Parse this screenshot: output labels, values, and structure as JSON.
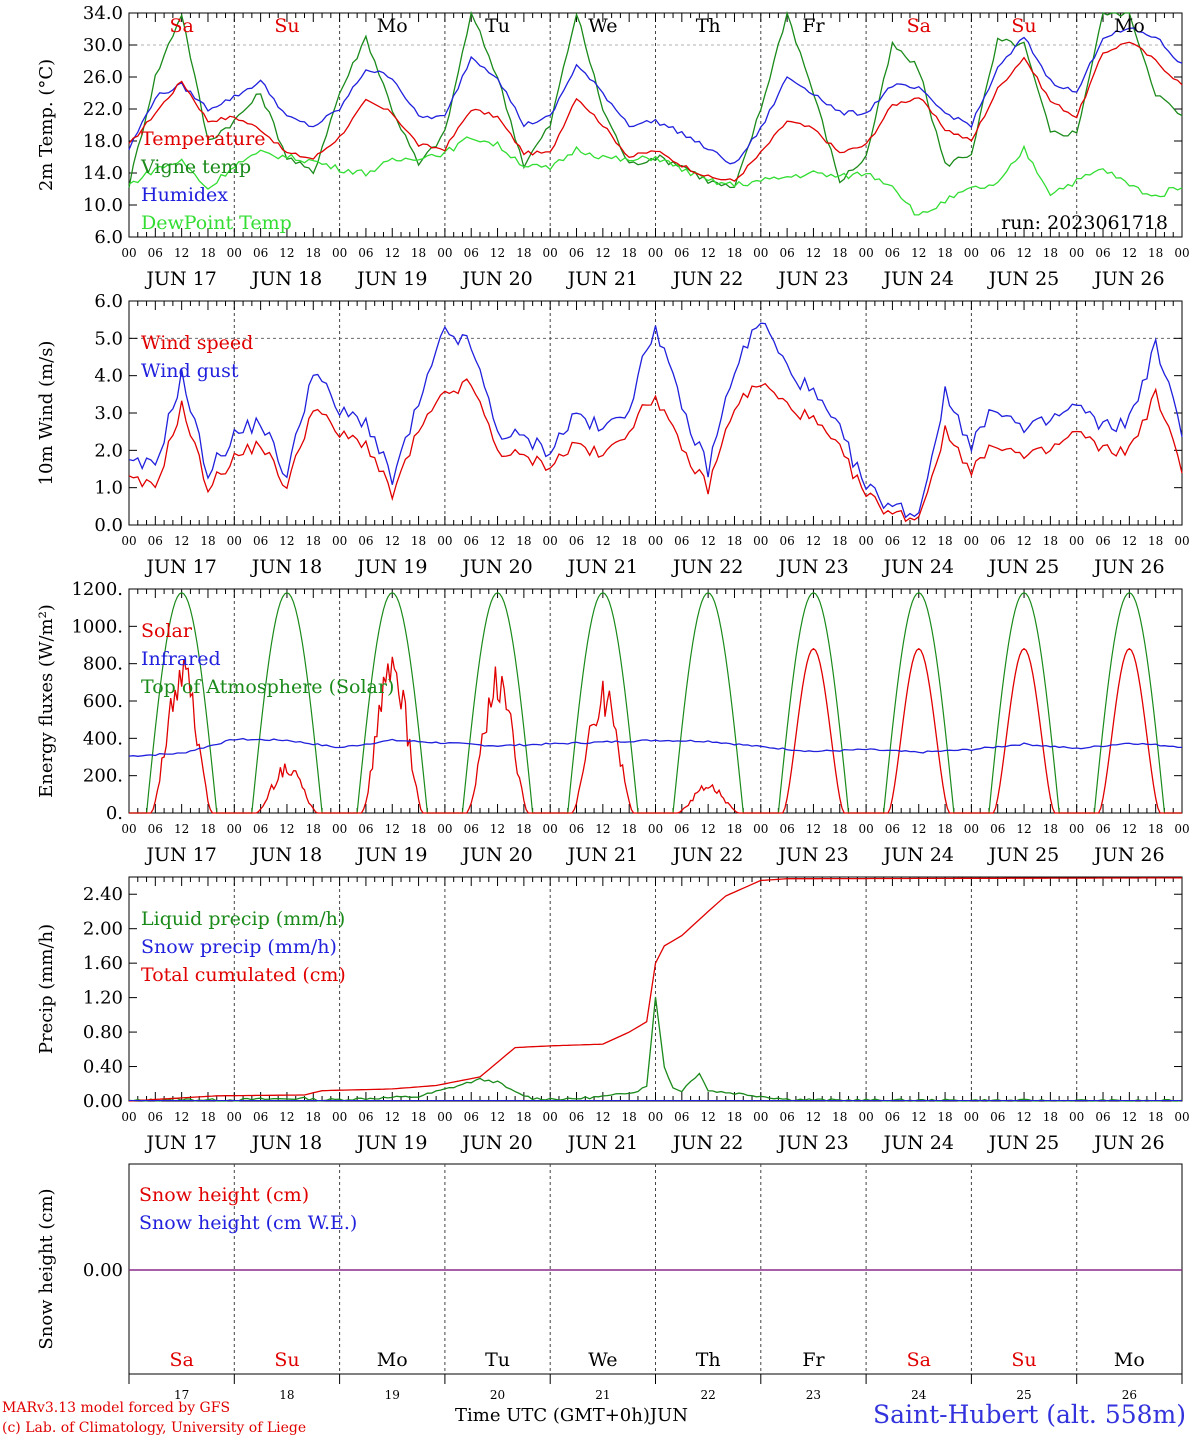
{
  "run_label": "run: 2023061718",
  "credits": {
    "line1": "MARv3.13 model forced by GFS",
    "line2": "(c) Lab. of Climatology, University of Liege"
  },
  "station": "Saint-Hubert (alt. 558m)",
  "time_axis_label": "Time UTC (GMT+0h)",
  "month_label": "JUN",
  "days": [
    {
      "dow": "Sa",
      "date": "JUN 17",
      "num": "17",
      "weekend": true
    },
    {
      "dow": "Su",
      "date": "JUN 18",
      "num": "18",
      "weekend": true
    },
    {
      "dow": "Mo",
      "date": "JUN 19",
      "num": "19",
      "weekend": false
    },
    {
      "dow": "Tu",
      "date": "JUN 20",
      "num": "20",
      "weekend": false
    },
    {
      "dow": "We",
      "date": "JUN 21",
      "num": "21",
      "weekend": false
    },
    {
      "dow": "Th",
      "date": "JUN 22",
      "num": "22",
      "weekend": false
    },
    {
      "dow": "Fr",
      "date": "JUN 23",
      "num": "23",
      "weekend": false
    },
    {
      "dow": "Sa",
      "date": "JUN 24",
      "num": "24",
      "weekend": true
    },
    {
      "dow": "Su",
      "date": "JUN 25",
      "num": "25",
      "weekend": true
    },
    {
      "dow": "Mo",
      "date": "JUN 26",
      "num": "26",
      "weekend": false
    }
  ],
  "hour_labels": [
    "00",
    "06",
    "12",
    "18"
  ],
  "end_hour_label": "00",
  "colors": {
    "temperature": "#e00000",
    "vigne": "#1a8a1a",
    "humidex": "#2020dd",
    "dewpoint": "#33dd33",
    "weekend_text": "#e00000",
    "weekday_text": "#000000",
    "snow_zero": "#8a2a8a"
  },
  "chart_data": [
    {
      "type": "line",
      "ylabel": "2m Temp. (°C)",
      "ylim": [
        6.0,
        34.0
      ],
      "yticks": [
        "6.0",
        "10.0",
        "14.0",
        "18.0",
        "22.0",
        "26.0",
        "30.0",
        "34.0"
      ],
      "ytick_values": [
        6,
        10,
        14,
        18,
        22,
        26,
        30,
        34
      ],
      "series": [
        {
          "name": "Temperature",
          "color": "#e00000",
          "x": [
            0,
            6,
            12,
            18,
            24,
            30,
            36,
            42,
            48,
            54,
            60,
            66,
            72,
            78,
            84,
            90,
            96,
            102,
            108,
            114,
            120,
            126,
            132,
            138,
            144,
            150,
            156,
            162,
            168,
            174,
            180,
            186,
            192,
            198,
            204,
            210,
            216,
            222,
            228,
            234,
            240
          ],
          "y": [
            17.5,
            21.5,
            25.5,
            20.5,
            21.0,
            19.5,
            16.5,
            15.8,
            18.5,
            23.0,
            21.5,
            17.5,
            17.0,
            22.0,
            21.0,
            16.5,
            16.5,
            23.5,
            20.0,
            16.0,
            16.8,
            15.0,
            13.5,
            13.0,
            16.5,
            20.5,
            19.5,
            16.5,
            17.5,
            22.5,
            23.5,
            19.5,
            18.0,
            24.5,
            28.5,
            23.0,
            21.0,
            29.0,
            30.5,
            28.0,
            25.0
          ]
        },
        {
          "name": "Vigne temp",
          "color": "#1a8a1a",
          "x": [
            0,
            6,
            12,
            18,
            24,
            30,
            36,
            42,
            48,
            54,
            60,
            66,
            72,
            78,
            84,
            90,
            96,
            102,
            108,
            114,
            120,
            126,
            132,
            138,
            144,
            150,
            156,
            162,
            168,
            174,
            180,
            186,
            192,
            198,
            204,
            210,
            216,
            222,
            228,
            234,
            240
          ],
          "y": [
            12.5,
            26.0,
            34.0,
            18.0,
            20.5,
            24.0,
            16.0,
            14.0,
            24.0,
            31.0,
            22.0,
            15.0,
            19.0,
            34.0,
            26.0,
            15.0,
            20.0,
            34.0,
            22.0,
            15.0,
            16.0,
            15.0,
            13.0,
            12.0,
            22.0,
            34.0,
            24.0,
            13.0,
            16.0,
            30.0,
            27.0,
            15.0,
            16.5,
            30.5,
            30.0,
            19.0,
            19.0,
            34.0,
            34.0,
            24.0,
            21.0
          ]
        },
        {
          "name": "Humidex",
          "color": "#2020dd",
          "x": [
            0,
            6,
            12,
            18,
            24,
            30,
            36,
            42,
            48,
            54,
            60,
            66,
            72,
            78,
            84,
            90,
            96,
            102,
            108,
            114,
            120,
            126,
            132,
            138,
            144,
            150,
            156,
            162,
            168,
            174,
            180,
            186,
            192,
            198,
            204,
            210,
            216,
            222,
            228,
            234,
            240
          ],
          "y": [
            17.0,
            23.5,
            25.0,
            22.0,
            23.5,
            25.5,
            21.0,
            19.8,
            22.0,
            27.0,
            26.0,
            21.0,
            21.0,
            28.5,
            26.0,
            20.0,
            21.0,
            27.5,
            24.0,
            20.0,
            20.5,
            19.0,
            17.0,
            15.0,
            19.5,
            26.0,
            24.0,
            21.5,
            21.5,
            25.0,
            24.5,
            21.5,
            20.0,
            27.0,
            31.0,
            25.5,
            24.0,
            31.0,
            32.0,
            31.0,
            27.5
          ]
        },
        {
          "name": "DewPoint Temp",
          "color": "#33dd33",
          "x": [
            0,
            6,
            12,
            18,
            24,
            30,
            36,
            42,
            48,
            54,
            60,
            66,
            72,
            78,
            84,
            90,
            96,
            102,
            108,
            114,
            120,
            126,
            132,
            138,
            144,
            150,
            156,
            162,
            168,
            174,
            180,
            186,
            192,
            198,
            204,
            210,
            216,
            222,
            228,
            234,
            240
          ],
          "y": [
            12.5,
            14.5,
            15.5,
            12.0,
            15.0,
            16.5,
            16.0,
            15.5,
            14.5,
            14.0,
            15.5,
            16.0,
            16.5,
            18.5,
            17.5,
            15.0,
            14.5,
            17.0,
            16.0,
            15.5,
            16.0,
            14.5,
            13.0,
            12.5,
            13.0,
            13.5,
            14.0,
            13.5,
            14.0,
            12.5,
            8.5,
            10.5,
            12.0,
            12.5,
            17.0,
            11.5,
            13.0,
            14.5,
            12.5,
            11.0,
            12.5
          ]
        }
      ]
    },
    {
      "type": "line",
      "ylabel": "10m Wind (m/s)",
      "ylim": [
        0.0,
        6.0
      ],
      "yticks": [
        "0.0",
        "1.0",
        "2.0",
        "3.0",
        "4.0",
        "5.0",
        "6.0"
      ],
      "ytick_values": [
        0,
        1,
        2,
        3,
        4,
        5,
        6
      ],
      "series": [
        {
          "name": "Wind speed",
          "color": "#e00000",
          "x": [
            0,
            6,
            12,
            18,
            24,
            30,
            36,
            42,
            48,
            54,
            60,
            66,
            72,
            78,
            84,
            90,
            96,
            102,
            108,
            114,
            120,
            126,
            132,
            138,
            144,
            150,
            156,
            162,
            168,
            174,
            180,
            186,
            192,
            198,
            204,
            210,
            216,
            222,
            228,
            234,
            240
          ],
          "y": [
            1.2,
            1.0,
            3.2,
            1.0,
            1.8,
            2.2,
            1.0,
            3.2,
            2.4,
            2.2,
            0.8,
            2.5,
            3.5,
            3.8,
            2.0,
            1.8,
            1.6,
            2.2,
            1.8,
            2.6,
            3.5,
            2.0,
            1.0,
            3.2,
            3.8,
            3.2,
            2.8,
            2.0,
            0.8,
            0.3,
            0.2,
            2.5,
            1.5,
            2.2,
            1.8,
            2.0,
            2.5,
            2.0,
            2.0,
            3.5,
            1.5
          ]
        },
        {
          "name": "Wind gust",
          "color": "#2020dd",
          "x": [
            0,
            6,
            12,
            18,
            24,
            30,
            36,
            42,
            48,
            54,
            60,
            66,
            72,
            78,
            84,
            90,
            96,
            102,
            108,
            114,
            120,
            126,
            132,
            138,
            144,
            150,
            156,
            162,
            168,
            174,
            180,
            186,
            192,
            198,
            204,
            210,
            216,
            222,
            228,
            234,
            240
          ],
          "y": [
            1.6,
            1.6,
            4.0,
            1.4,
            2.4,
            2.8,
            1.3,
            4.2,
            3.0,
            2.8,
            1.2,
            3.2,
            5.2,
            4.8,
            2.5,
            2.3,
            2.0,
            3.0,
            2.5,
            3.2,
            5.4,
            3.1,
            1.5,
            4.2,
            5.5,
            4.2,
            3.5,
            2.5,
            1.0,
            0.5,
            0.3,
            3.5,
            2.2,
            3.2,
            2.5,
            2.8,
            3.2,
            2.6,
            2.8,
            4.8,
            2.5
          ]
        }
      ]
    },
    {
      "type": "line",
      "ylabel": "Energy fluxes (W/m²)",
      "ylim": [
        0,
        1200
      ],
      "yticks": [
        "0.",
        "200.",
        "400.",
        "600.",
        "800.",
        "1000.",
        "1200."
      ],
      "ytick_values": [
        0,
        200,
        400,
        600,
        800,
        1000,
        1200
      ],
      "solar_peaks": [
        880,
        270,
        880,
        800,
        720,
        160,
        880,
        880,
        880,
        880
      ],
      "toa_peak": 1180,
      "series": [
        {
          "name": "Solar",
          "color": "#e00000"
        },
        {
          "name": "Infrared",
          "color": "#2020dd",
          "x": [
            0,
            12,
            24,
            36,
            48,
            60,
            72,
            84,
            96,
            108,
            120,
            132,
            144,
            156,
            168,
            180,
            192,
            204,
            216,
            228,
            240
          ],
          "y": [
            305,
            320,
            395,
            390,
            350,
            390,
            375,
            360,
            370,
            380,
            390,
            385,
            355,
            330,
            340,
            325,
            340,
            370,
            345,
            375,
            355
          ]
        },
        {
          "name": "Top of Atmosphere (Solar)",
          "color": "#1a8a1a"
        }
      ]
    },
    {
      "type": "line",
      "ylabel": "Precip (mm/h)",
      "ylim": [
        0.0,
        2.6
      ],
      "yticks": [
        "0.00",
        "0.40",
        "0.80",
        "1.20",
        "1.60",
        "2.00",
        "2.40"
      ],
      "ytick_values": [
        0,
        0.4,
        0.8,
        1.2,
        1.6,
        2.0,
        2.4
      ],
      "series": [
        {
          "name": "Liquid precip (mm/h)",
          "color": "#1a8a1a",
          "x": [
            0,
            10,
            20,
            40,
            44,
            60,
            66,
            80,
            84,
            88,
            92,
            100,
            110,
            116,
            118,
            120,
            122,
            124,
            126,
            130,
            132,
            140,
            150,
            160,
            240
          ],
          "y": [
            0,
            0.02,
            0.01,
            0.03,
            0.01,
            0.04,
            0.05,
            0.25,
            0.22,
            0.1,
            0.03,
            0.02,
            0.06,
            0.12,
            0.18,
            1.2,
            0.4,
            0.15,
            0.12,
            0.33,
            0.12,
            0.08,
            0.02,
            0.01,
            0
          ]
        },
        {
          "name": "Snow precip (mm/h)",
          "color": "#2020dd"
        },
        {
          "name": "Total cumulated (cm)",
          "color": "#e00000",
          "x": [
            0,
            10,
            20,
            40,
            44,
            60,
            70,
            80,
            88,
            96,
            108,
            114,
            118,
            120,
            122,
            126,
            132,
            136,
            144,
            150,
            240
          ],
          "y": [
            0,
            0.03,
            0.06,
            0.07,
            0.12,
            0.14,
            0.18,
            0.28,
            0.62,
            0.64,
            0.66,
            0.8,
            0.92,
            1.6,
            1.8,
            1.92,
            2.2,
            2.38,
            2.56,
            2.58,
            2.59
          ]
        }
      ]
    },
    {
      "type": "line",
      "ylabel": "Snow height (cm)",
      "yticks": [
        "0.00"
      ],
      "ytick_values": [
        0
      ],
      "series": [
        {
          "name": "Snow height (cm)",
          "color": "#e00000",
          "x": [
            0,
            240
          ],
          "y": [
            0,
            0
          ]
        },
        {
          "name": "Snow height (cm W.E.)",
          "color": "#2020dd",
          "x": [
            0,
            240
          ],
          "y": [
            0,
            0
          ]
        }
      ]
    }
  ]
}
